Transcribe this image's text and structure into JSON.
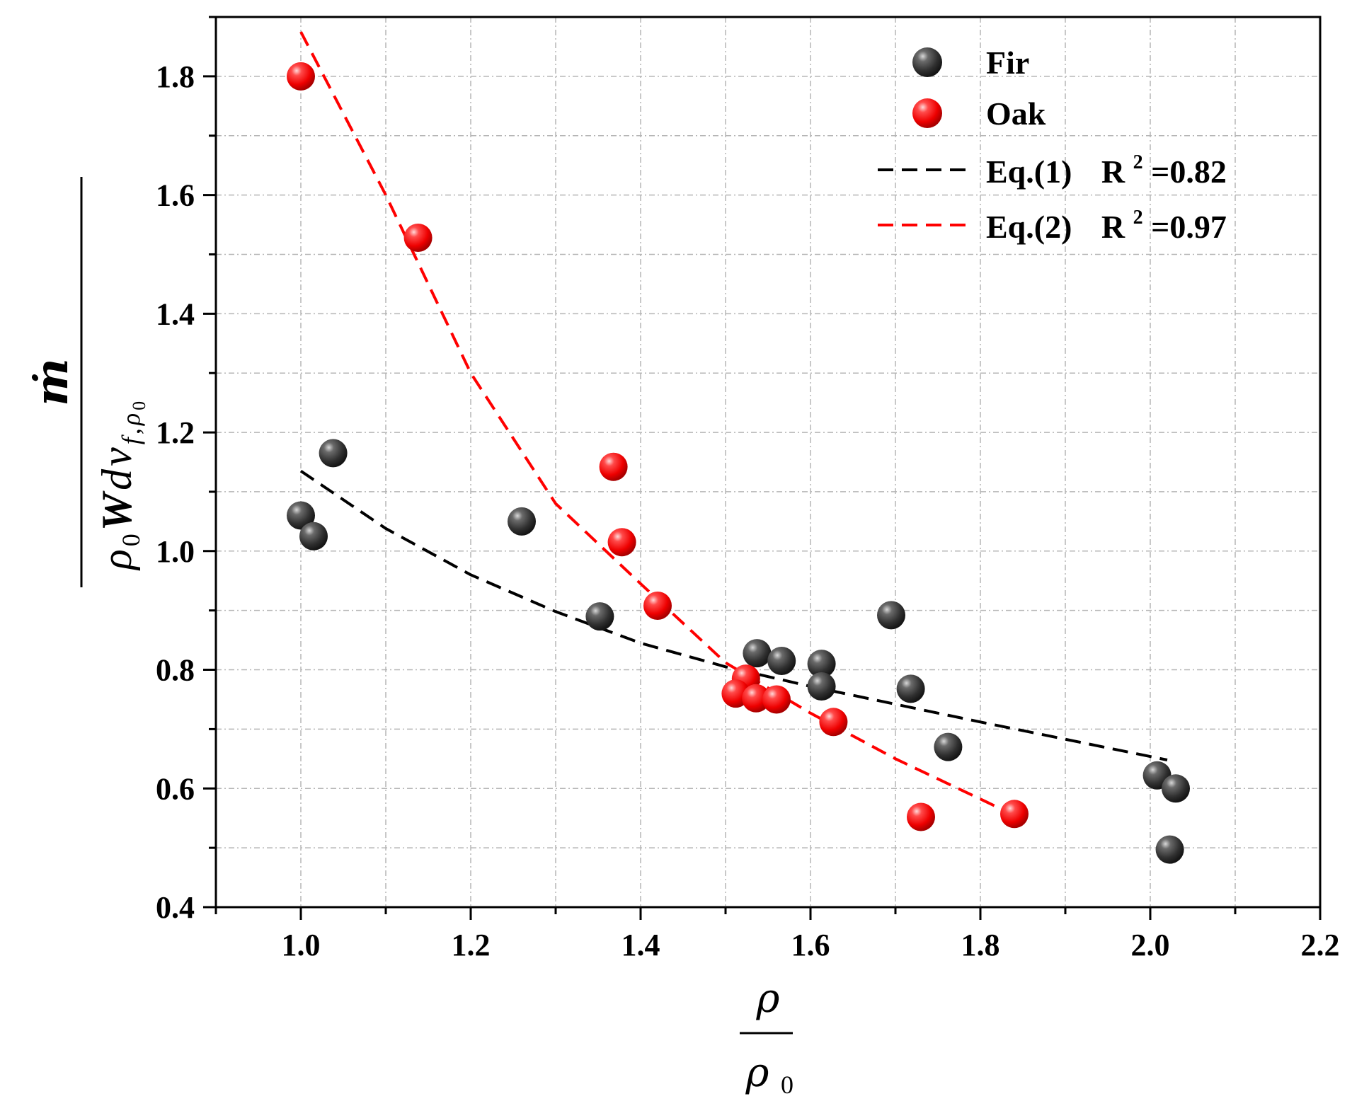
{
  "chart_data": {
    "type": "scatter",
    "title": "",
    "xlabel": {
      "numerator": "ρ",
      "denominator": "ρ",
      "denominator_sub": "0"
    },
    "ylabel": {
      "numerator": "ṁ",
      "denominator_parts": [
        "ρ",
        "0",
        "W",
        "d",
        "v",
        "f",
        ",",
        "ρ",
        "0"
      ]
    },
    "xlim": [
      0.9,
      2.2
    ],
    "ylim": [
      0.4,
      1.9
    ],
    "xticks": [
      1.0,
      1.2,
      1.4,
      1.6,
      1.8,
      2.0,
      2.2
    ],
    "xtick_labels": [
      "1.0",
      "1.2",
      "1.4",
      "1.6",
      "1.8",
      "2.0",
      "2.2"
    ],
    "yticks": [
      0.4,
      0.6,
      0.8,
      1.0,
      1.2,
      1.4,
      1.6,
      1.8
    ],
    "ytick_labels": [
      "0.4",
      "0.6",
      "0.8",
      "1.0",
      "1.2",
      "1.4",
      "1.6",
      "1.8"
    ],
    "grid": true,
    "legend_position": "top-right",
    "series": [
      {
        "name": "Fir",
        "kind": "scatter",
        "color": "#3a3a3a",
        "points": [
          [
            1.0,
            1.06
          ],
          [
            1.015,
            1.025
          ],
          [
            1.038,
            1.165
          ],
          [
            1.26,
            1.05
          ],
          [
            1.352,
            0.89
          ],
          [
            1.537,
            0.828
          ],
          [
            1.566,
            0.815
          ],
          [
            1.613,
            0.81
          ],
          [
            1.613,
            0.772
          ],
          [
            1.695,
            0.892
          ],
          [
            1.718,
            0.768
          ],
          [
            1.762,
            0.67
          ],
          [
            2.008,
            0.622
          ],
          [
            2.03,
            0.6
          ],
          [
            2.023,
            0.497
          ]
        ]
      },
      {
        "name": "Oak",
        "kind": "scatter",
        "color": "#ff1a1a",
        "points": [
          [
            1.0,
            1.8
          ],
          [
            1.138,
            1.528
          ],
          [
            1.368,
            1.142
          ],
          [
            1.378,
            1.015
          ],
          [
            1.42,
            0.908
          ],
          [
            1.524,
            0.785
          ],
          [
            1.512,
            0.76
          ],
          [
            1.536,
            0.752
          ],
          [
            1.56,
            0.75
          ],
          [
            1.627,
            0.712
          ],
          [
            1.73,
            0.552
          ],
          [
            1.84,
            0.557
          ]
        ]
      }
    ],
    "fits": [
      {
        "name": "Eq.(1)",
        "r2_label": "R",
        "r2_sup": "2",
        "r2_value": "=0.82",
        "color": "#000000",
        "x_range": [
          1.0,
          2.02
        ],
        "points": [
          [
            1.0,
            1.135
          ],
          [
            1.1,
            1.038
          ],
          [
            1.2,
            0.96
          ],
          [
            1.3,
            0.898
          ],
          [
            1.4,
            0.845
          ],
          [
            1.5,
            0.805
          ],
          [
            1.6,
            0.772
          ],
          [
            1.7,
            0.742
          ],
          [
            1.8,
            0.712
          ],
          [
            1.9,
            0.683
          ],
          [
            2.02,
            0.648
          ]
        ]
      },
      {
        "name": "Eq.(2)",
        "r2_label": "R",
        "r2_sup": "2",
        "r2_value": "=0.97",
        "color": "#ff0000",
        "x_range": [
          1.0,
          1.84
        ],
        "points": [
          [
            1.0,
            1.875
          ],
          [
            1.1,
            1.6
          ],
          [
            1.2,
            1.3
          ],
          [
            1.3,
            1.08
          ],
          [
            1.4,
            0.945
          ],
          [
            1.5,
            0.812
          ],
          [
            1.6,
            0.727
          ],
          [
            1.7,
            0.65
          ],
          [
            1.84,
            0.555
          ]
        ]
      }
    ]
  }
}
